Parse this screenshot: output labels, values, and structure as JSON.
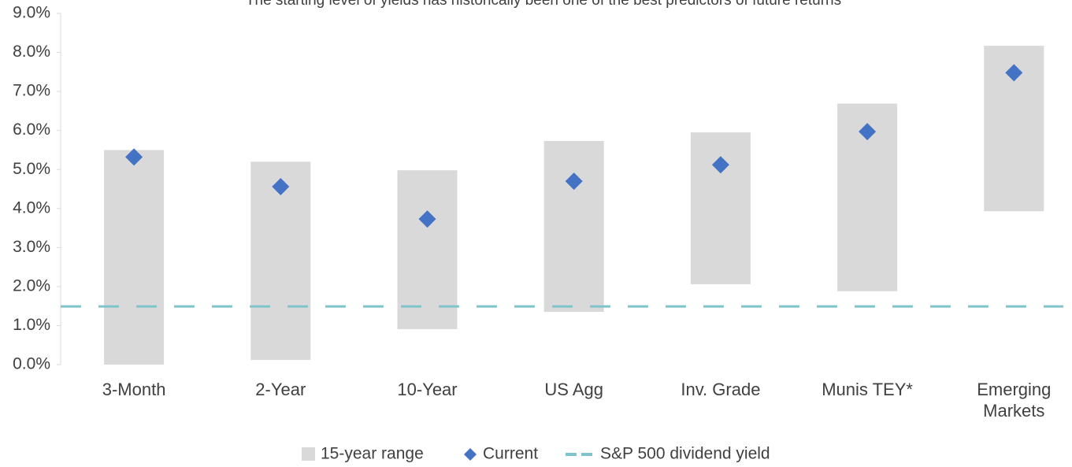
{
  "chart_data": {
    "type": "range_bar",
    "title": "The starting level of yields has historically been one of the best predictors of future returns",
    "categories": [
      "3-Month",
      "2-Year",
      "10-Year",
      "US Agg",
      "Inv. Grade",
      "Munis TEY*",
      "Emerging Markets"
    ],
    "series": [
      {
        "name": "15-year range",
        "color": "#d9d9d9",
        "low": [
          0.0,
          0.12,
          0.91,
          1.35,
          2.06,
          1.88,
          3.93
        ],
        "high": [
          5.5,
          5.2,
          4.98,
          5.73,
          5.95,
          6.69,
          8.17
        ]
      },
      {
        "name": "Current",
        "color": "#4472c4",
        "values": [
          5.32,
          4.56,
          3.73,
          4.7,
          5.12,
          5.97,
          7.48
        ]
      }
    ],
    "reference_line": {
      "name": "S&P 500 dividend yield",
      "value": 1.49,
      "color": "#7fc4cc"
    },
    "ylim": [
      0,
      9
    ],
    "yticks": [
      {
        "value": 0,
        "label": "0.0%"
      },
      {
        "value": 1,
        "label": "1.0%"
      },
      {
        "value": 2,
        "label": "2.0%"
      },
      {
        "value": 3,
        "label": "3.0%"
      },
      {
        "value": 4,
        "label": "4.0%"
      },
      {
        "value": 5,
        "label": "5.0%"
      },
      {
        "value": 6,
        "label": "6.0%"
      },
      {
        "value": 7,
        "label": "7.0%"
      },
      {
        "value": 8,
        "label": "8.0%"
      },
      {
        "value": 9,
        "label": "9.0%"
      }
    ],
    "legend": "bottom"
  }
}
